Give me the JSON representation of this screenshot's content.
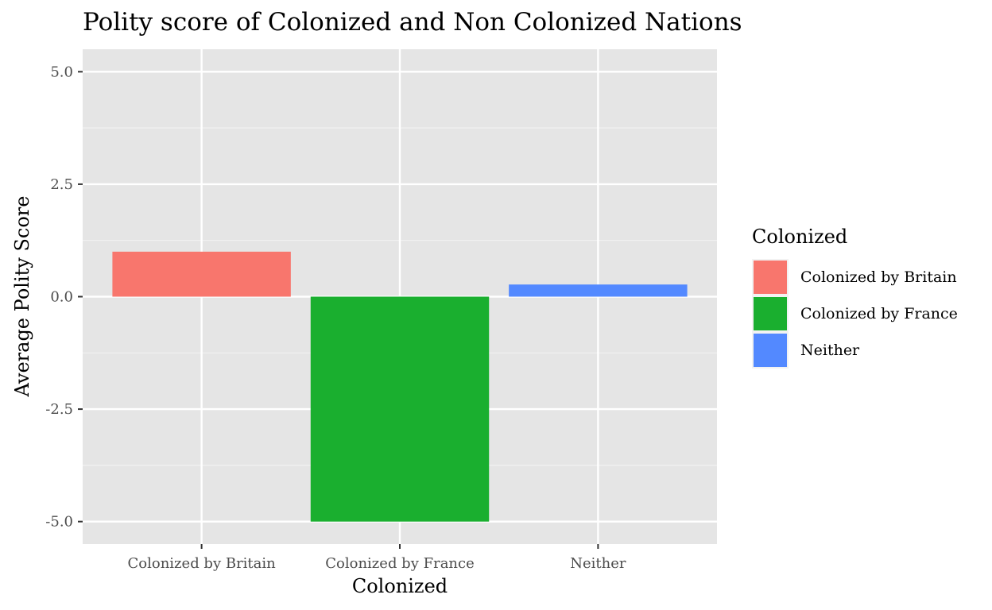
{
  "chart_data": {
    "type": "bar",
    "title": "Polity score of Colonized and Non Colonized Nations",
    "xlabel": "Colonized",
    "ylabel": "Average Polity Score",
    "categories": [
      "Colonized by Britain",
      "Colonized by France",
      "Neither"
    ],
    "values": [
      1.0,
      -5.0,
      0.27
    ],
    "colors": [
      "#F8766D",
      "#1AAF2F",
      "#5389FF"
    ],
    "ylim": [
      -5.5,
      5.5
    ],
    "yticks": [
      5.0,
      2.5,
      0.0,
      -2.5,
      -5.0
    ],
    "ytick_labels": [
      "5.0",
      "2.5",
      "0.0",
      "-2.5",
      "-5.0"
    ],
    "grid": true,
    "panel_background": "#E5E5E5",
    "legend": {
      "title": "Colonized",
      "position": "right",
      "entries": [
        "Colonized by Britain",
        "Colonized by France",
        "Neither"
      ]
    }
  }
}
